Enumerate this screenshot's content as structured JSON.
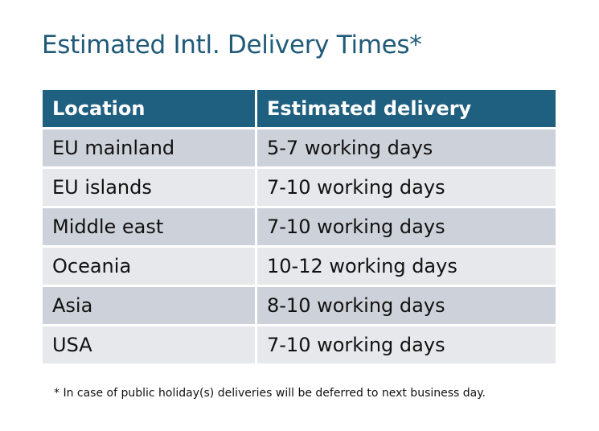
{
  "title": "Estimated Intl. Delivery Times*",
  "table": {
    "headers": [
      "Location",
      "Estimated delivery"
    ],
    "rows": [
      [
        "EU mainland",
        "5-7 working days"
      ],
      [
        "EU islands",
        "7-10 working days"
      ],
      [
        "Middle east",
        "7-10 working days"
      ],
      [
        "Oceania",
        "10-12 working days"
      ],
      [
        "Asia",
        "8-10 working days"
      ],
      [
        "USA",
        "7-10 working days"
      ]
    ]
  },
  "footnote": "* In case of public holiday(s) deliveries will be deferred to next business day.",
  "colors": {
    "header": "#1f5f80",
    "title": "#1f5a78",
    "row_dark": "#cdd1d9",
    "row_light": "#e6e8eb"
  }
}
